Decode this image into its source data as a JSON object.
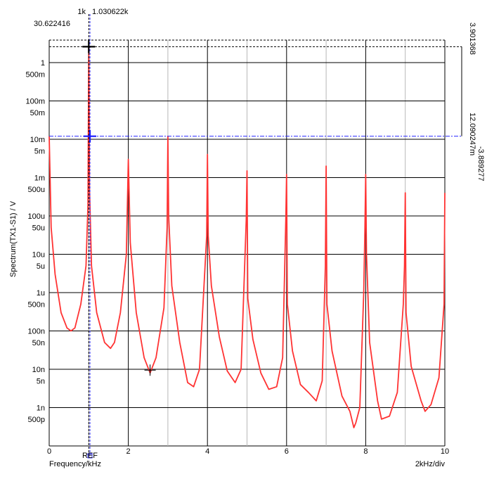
{
  "chart_data": {
    "type": "line",
    "xlabel": "Frequency/kHz",
    "ylabel": "Spectrum(TX1-S1) / V",
    "x_div_label": "2kHz/div",
    "xlim": [
      0,
      10
    ],
    "ylim": [
      2e-10,
      3
    ],
    "yscale": "log",
    "grid": true,
    "x_ticks": [
      {
        "value": 0,
        "label": "0"
      },
      {
        "value": 2,
        "label": "2"
      },
      {
        "value": 4,
        "label": "4"
      },
      {
        "value": 6,
        "label": "6"
      },
      {
        "value": 8,
        "label": "8"
      },
      {
        "value": 10,
        "label": "10"
      }
    ],
    "y_ticks": [
      {
        "value": 1,
        "label": "1"
      },
      {
        "value": 0.5,
        "label": "500m"
      },
      {
        "value": 0.1,
        "label": "100m"
      },
      {
        "value": 0.05,
        "label": "50m"
      },
      {
        "value": 0.01,
        "label": "10m"
      },
      {
        "value": 0.005,
        "label": "5m"
      },
      {
        "value": 0.001,
        "label": "1m"
      },
      {
        "value": 0.0005,
        "label": "500u"
      },
      {
        "value": 0.0001,
        "label": "100u"
      },
      {
        "value": 5e-05,
        "label": "50u"
      },
      {
        "value": 1e-05,
        "label": "10u"
      },
      {
        "value": 5e-06,
        "label": "5u"
      },
      {
        "value": 1e-06,
        "label": "1u"
      },
      {
        "value": 5e-07,
        "label": "500n"
      },
      {
        "value": 1e-07,
        "label": "100n"
      },
      {
        "value": 5e-08,
        "label": "50n"
      },
      {
        "value": 1e-08,
        "label": "10n"
      },
      {
        "value": 5e-09,
        "label": "5n"
      },
      {
        "value": 1e-09,
        "label": "1n"
      },
      {
        "value": 5e-10,
        "label": "500p"
      }
    ],
    "series": [
      {
        "color": "#ff3333",
        "x": [
          0,
          0.05,
          0.15,
          0.3,
          0.45,
          0.55,
          0.65,
          0.8,
          0.93,
          0.98,
          1.0,
          1.02,
          1.07,
          1.2,
          1.4,
          1.55,
          1.65,
          1.8,
          1.95,
          2.0,
          2.05,
          2.2,
          2.4,
          2.55,
          2.7,
          2.9,
          2.98,
          3.0,
          3.02,
          3.1,
          3.3,
          3.5,
          3.65,
          3.8,
          3.98,
          4.0,
          4.02,
          4.1,
          4.3,
          4.5,
          4.7,
          4.85,
          4.98,
          5.0,
          5.02,
          5.15,
          5.35,
          5.55,
          5.75,
          5.9,
          5.98,
          6.0,
          6.02,
          6.15,
          6.35,
          6.55,
          6.75,
          6.9,
          6.98,
          7.0,
          7.02,
          7.15,
          7.4,
          7.6,
          7.7,
          7.75,
          7.85,
          7.95,
          7.98,
          8.0,
          8.02,
          8.1,
          8.3,
          8.4,
          8.6,
          8.8,
          8.95,
          8.98,
          9.0,
          9.02,
          9.15,
          9.4,
          9.5,
          9.65,
          9.85,
          9.98,
          10.0
        ],
        "y": [
          0.012,
          5e-05,
          3e-06,
          3e-07,
          1.2e-07,
          1e-07,
          1.2e-07,
          5e-07,
          5e-06,
          0.0002,
          2.5,
          0.0005,
          5e-06,
          3e-07,
          5e-08,
          3.5e-08,
          5e-08,
          3e-07,
          1e-05,
          0.003,
          2e-05,
          3e-07,
          2e-08,
          8e-09,
          2e-08,
          4e-07,
          5e-05,
          0.012,
          0.0001,
          1.5e-06,
          5e-08,
          4.5e-09,
          3.5e-09,
          1e-08,
          3e-05,
          0.004,
          3e-05,
          1.5e-06,
          7e-08,
          9e-09,
          4.5e-09,
          1e-08,
          8e-05,
          0.0015,
          7e-07,
          6e-08,
          8e-09,
          3e-09,
          3.5e-09,
          2e-08,
          8e-05,
          0.0012,
          5e-07,
          3e-08,
          4e-09,
          2.5e-09,
          1.5e-09,
          5e-09,
          5e-06,
          0.002,
          5e-07,
          3e-08,
          2e-09,
          8e-10,
          3e-10,
          4e-10,
          1e-09,
          1e-06,
          5e-05,
          0.0012,
          1e-05,
          5e-08,
          1.5e-09,
          5e-10,
          6e-10,
          2.5e-09,
          5e-07,
          5e-06,
          0.0004,
          3e-07,
          1.2e-08,
          1.5e-09,
          8e-10,
          1.2e-09,
          6e-09,
          5e-07,
          0.0004
        ]
      }
    ],
    "cursor1": {
      "x": 1.0,
      "y": 2.6,
      "label": "1k"
    },
    "cursor2": {
      "x": 1.030622,
      "y": 0.012,
      "label": "1.030622k"
    },
    "marker": {
      "x": 2.55,
      "y": 9.5e-09
    },
    "readouts": {
      "top_left": "30.622416",
      "right_top": "3.901368",
      "right_mid": "12.090247m",
      "right_delta": "-3.889277",
      "ref_label": "REF"
    }
  }
}
